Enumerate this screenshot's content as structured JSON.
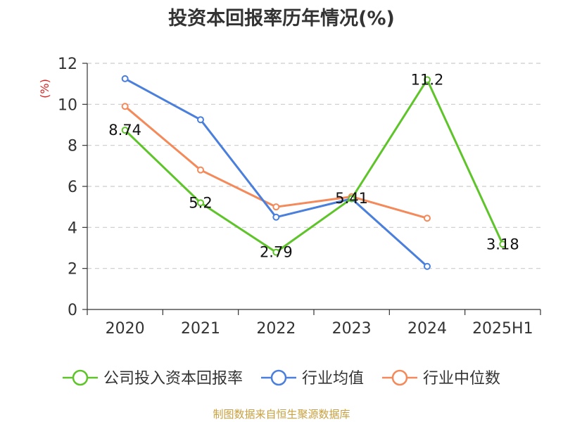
{
  "chart_data": {
    "type": "line",
    "title": "投资本回报率历年情况(%)",
    "ylabel": "(%)",
    "categories": [
      "2020",
      "2021",
      "2022",
      "2023",
      "2024",
      "2025H1"
    ],
    "ylim": [
      0,
      12
    ],
    "yticks": [
      "0",
      "2",
      "4",
      "6",
      "8",
      "10",
      "12"
    ],
    "grid": true,
    "legend_position": "bottom",
    "series": [
      {
        "name": "公司投入资本回报率",
        "color": "#5ec42a",
        "values": [
          8.74,
          5.2,
          2.79,
          5.41,
          11.2,
          3.18
        ],
        "labels": [
          "8.74",
          "5.2",
          "2.79",
          "5.41",
          "11.2",
          "3.18"
        ]
      },
      {
        "name": "行业均值",
        "color": "#4a7fdc",
        "values": [
          11.25,
          9.25,
          4.5,
          5.4,
          2.1,
          null
        ]
      },
      {
        "name": "行业中位数",
        "color": "#f4895a",
        "values": [
          9.9,
          6.8,
          5.0,
          5.5,
          4.45,
          null
        ]
      }
    ]
  },
  "source": "制图数据来自恒生聚源数据库"
}
